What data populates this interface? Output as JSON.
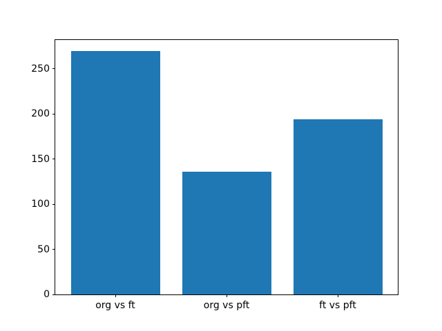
{
  "figure": {
    "background": "#ffffff",
    "frame_color": "#000000",
    "text_color": "#000000"
  },
  "chart_data": {
    "type": "bar",
    "title": "",
    "xlabel": "",
    "ylabel": "",
    "categories": [
      "org vs ft",
      "org vs pft",
      "ft vs pft"
    ],
    "values": [
      270,
      136,
      194
    ],
    "bar_color": "#1f77b4",
    "ylim": [
      0,
      282
    ],
    "yticks": [
      0,
      50,
      100,
      150,
      200,
      250
    ],
    "grid": false,
    "legend_position": "none"
  }
}
